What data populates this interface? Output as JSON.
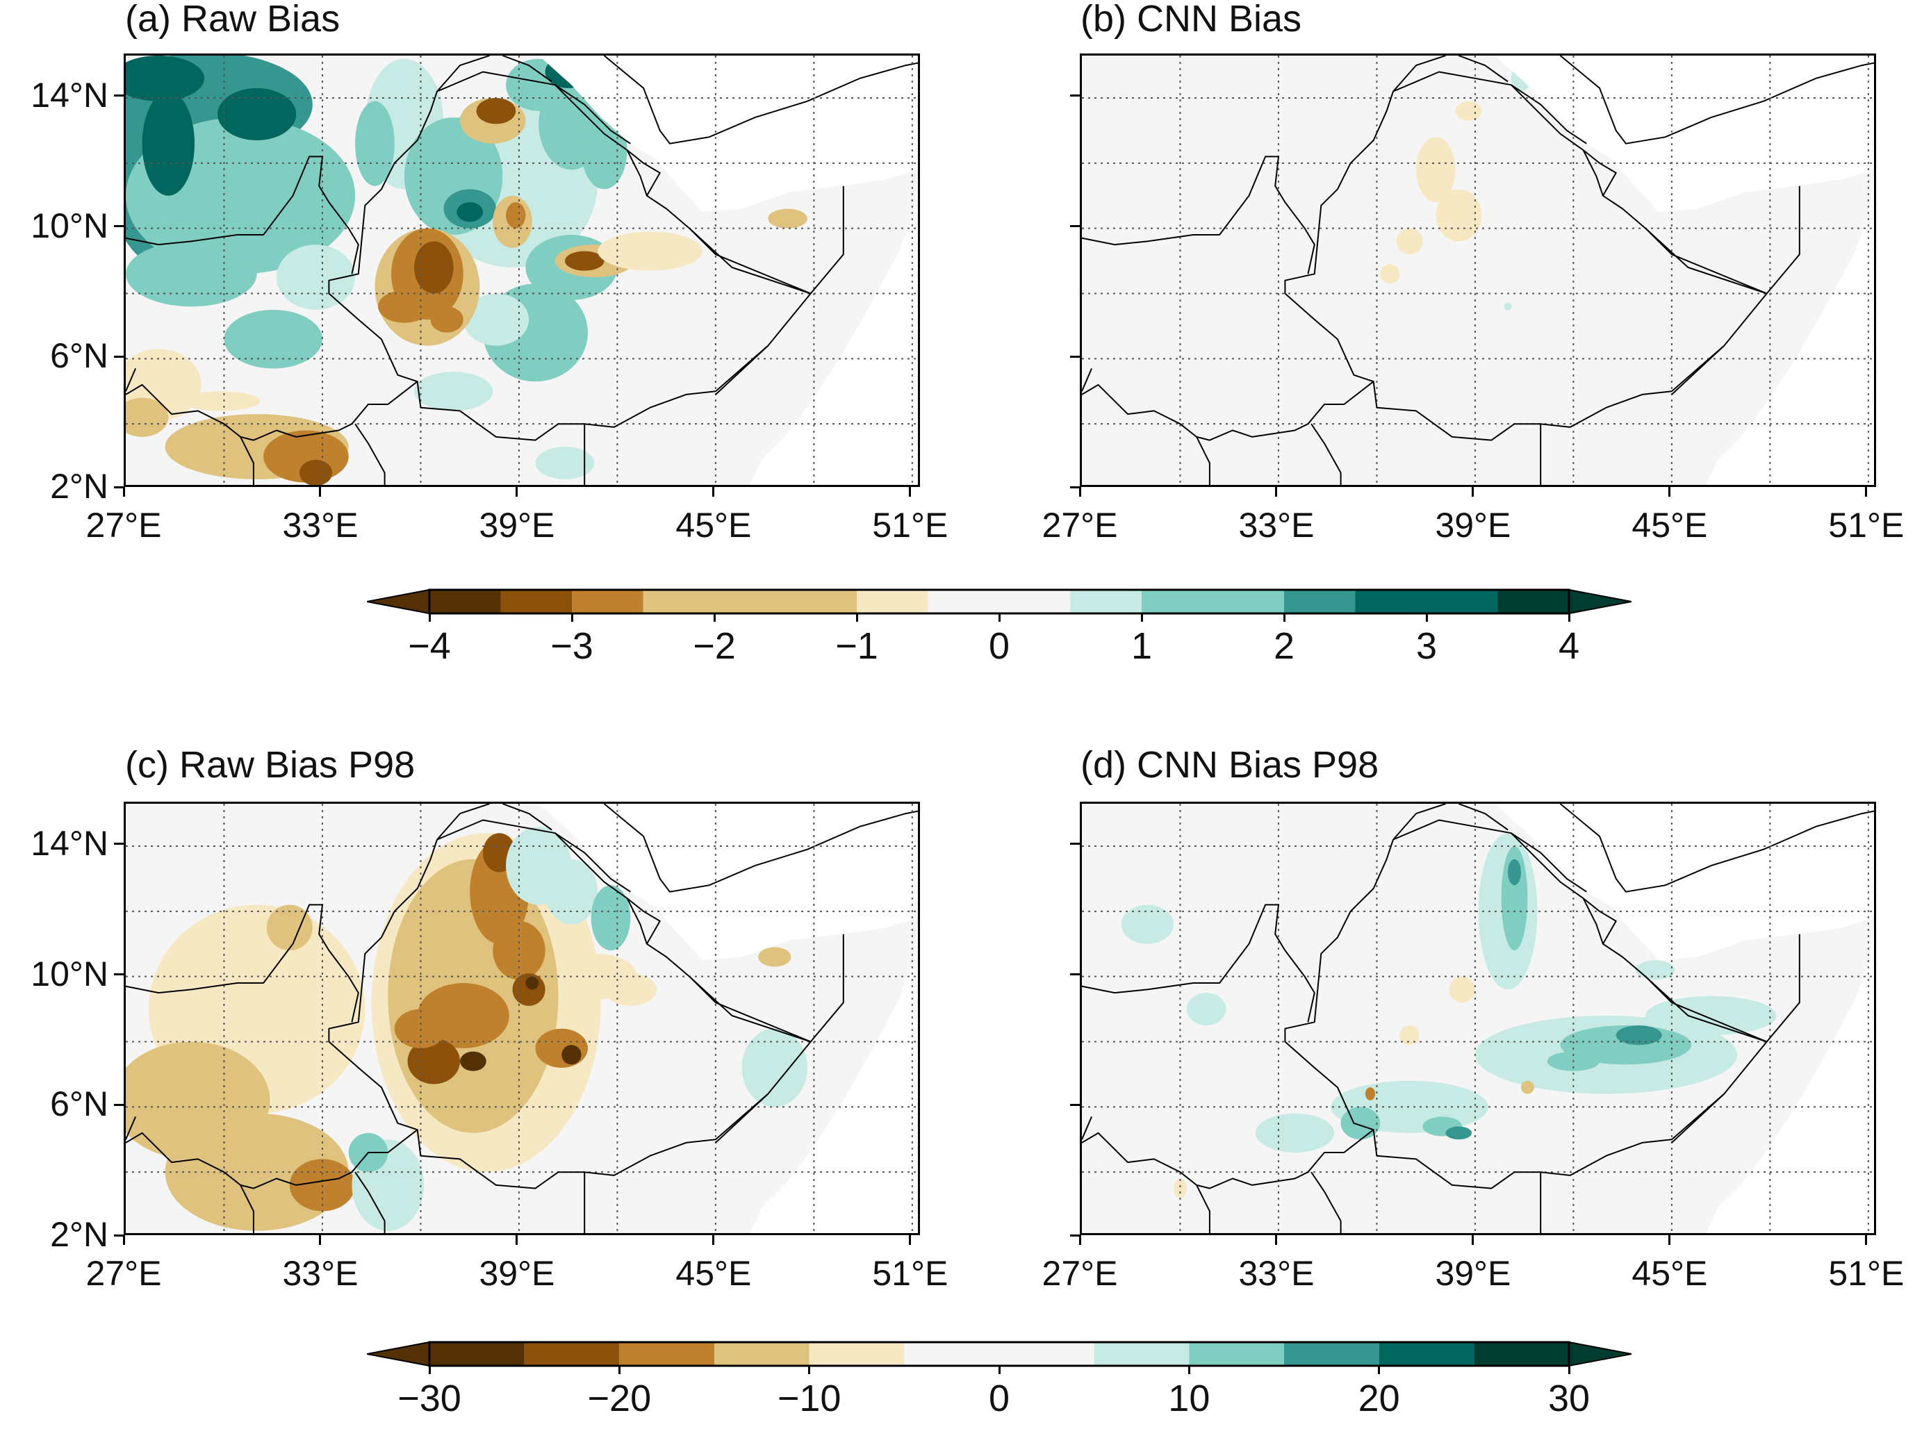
{
  "panels": [
    {
      "id": "a",
      "title": "(a) Raw Bias",
      "field": "raw_mean"
    },
    {
      "id": "b",
      "title": "(b) CNN Bias",
      "field": "cnn_mean"
    },
    {
      "id": "c",
      "title": "(c) Raw Bias P98",
      "field": "raw_p98"
    },
    {
      "id": "d",
      "title": "(d) CNN Bias P98",
      "field": "cnn_p98"
    }
  ],
  "axes": {
    "lat_ticks": [
      "14°N",
      "10°N",
      "6°N",
      "2°N"
    ],
    "lon_ticks": [
      "27°E",
      "33°E",
      "39°E",
      "45°E",
      "51°E"
    ],
    "lat_values": [
      14,
      10,
      6,
      2
    ],
    "lon_values": [
      27,
      33,
      39,
      45,
      51
    ],
    "extent": {
      "lon_min": 27,
      "lon_max": 51.3,
      "lat_min": 2,
      "lat_max": 15.3
    },
    "gridlines": "dotted"
  },
  "colorbars": [
    {
      "for": "mean bias",
      "ticks": [
        "−4",
        "−3",
        "−2",
        "−1",
        "0",
        "1",
        "2",
        "3",
        "4"
      ],
      "tick_values": [
        -4,
        -3,
        -2,
        -1,
        0,
        1,
        2,
        3,
        4
      ],
      "levels": [
        -4,
        -3.5,
        -3,
        -2.5,
        -2,
        -1,
        -0.5,
        0.5,
        1,
        1.5,
        2,
        2.5,
        3,
        3.5,
        4
      ],
      "extend": "both"
    },
    {
      "for": "P98 bias",
      "ticks": [
        "−30",
        "−20",
        "−10",
        "0",
        "10",
        "20",
        "30"
      ],
      "tick_values": [
        -30,
        -20,
        -10,
        0,
        10,
        20,
        30
      ],
      "levels": [
        -30,
        -25,
        -20,
        -15,
        -10,
        -5,
        5,
        10,
        15,
        20,
        25,
        30
      ],
      "extend": "both"
    }
  ],
  "colors": {
    "brown4": "#543005",
    "brown3": "#8c510a",
    "brown2": "#bf812d",
    "brown1": "#dfc27d",
    "brown0": "#f6e8c3",
    "neutral": "#f5f5f5",
    "teal0": "#c7eae5",
    "teal1": "#80cdc1",
    "teal2": "#35978f",
    "teal3": "#01665e",
    "teal4": "#003c30",
    "ocean": "#ffffff",
    "border": "#000000"
  }
}
